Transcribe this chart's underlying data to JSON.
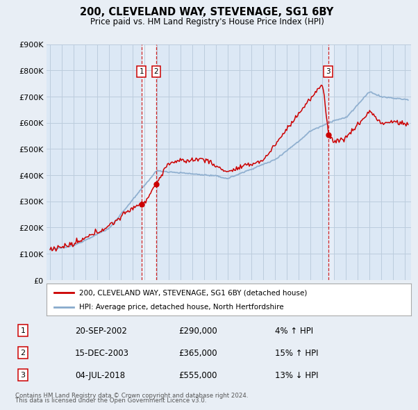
{
  "title": "200, CLEVELAND WAY, STEVENAGE, SG1 6BY",
  "subtitle": "Price paid vs. HM Land Registry's House Price Index (HPI)",
  "ylim": [
    0,
    900000
  ],
  "yticks": [
    0,
    100000,
    200000,
    300000,
    400000,
    500000,
    600000,
    700000,
    800000,
    900000
  ],
  "ytick_labels": [
    "£0",
    "£100K",
    "£200K",
    "£300K",
    "£400K",
    "£500K",
    "£600K",
    "£700K",
    "£800K",
    "£900K"
  ],
  "xlim_start": 1994.7,
  "xlim_end": 2025.5,
  "house_color": "#cc0000",
  "hpi_color": "#88aacc",
  "background_color": "#e8eef5",
  "plot_bg": "#dce8f5",
  "grid_color": "#bbccdd",
  "tx1_x": 2002.72,
  "tx1_y": 290000,
  "tx2_x": 2003.96,
  "tx2_y": 365000,
  "tx3_x": 2018.5,
  "tx3_y": 555000,
  "tx1_label": "1",
  "tx2_label": "2",
  "tx3_label": "3",
  "tx1_date": "20-SEP-2002",
  "tx1_price": "£290,000",
  "tx1_hpi": "4% ↑ HPI",
  "tx2_date": "15-DEC-2003",
  "tx2_price": "£365,000",
  "tx2_hpi": "15% ↑ HPI",
  "tx3_date": "04-JUL-2018",
  "tx3_price": "£555,000",
  "tx3_hpi": "13% ↓ HPI",
  "legend_line1": "200, CLEVELAND WAY, STEVENAGE, SG1 6BY (detached house)",
  "legend_line2": "HPI: Average price, detached house, North Hertfordshire",
  "footnote1": "Contains HM Land Registry data © Crown copyright and database right 2024.",
  "footnote2": "This data is licensed under the Open Government Licence v3.0."
}
